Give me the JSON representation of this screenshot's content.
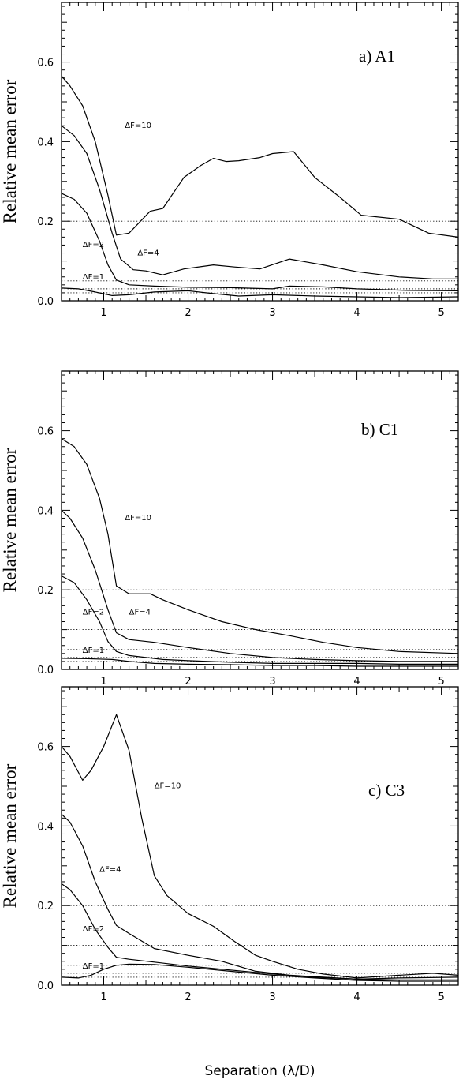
{
  "chart_data": [
    {
      "type": "line",
      "title": "a)  A1",
      "xlabel": "",
      "ylabel": "Relative mean error",
      "xlim": [
        0.5,
        5.2
      ],
      "ylim": [
        0,
        0.75
      ],
      "xticks": [
        "1",
        "2",
        "3",
        "4",
        "5"
      ],
      "yticks": [
        "0.0",
        "0.2",
        "0.4",
        "0.6"
      ],
      "reference_lines": [
        0.02,
        0.03,
        0.05,
        0.1,
        0.2
      ],
      "labels": [
        {
          "text": "ΔF=10",
          "x": 1.25,
          "y": 0.435
        },
        {
          "text": "ΔF=4",
          "x": 1.4,
          "y": 0.114
        },
        {
          "text": "ΔF=2",
          "x": 0.75,
          "y": 0.135
        },
        {
          "text": "ΔF=1",
          "x": 0.75,
          "y": 0.054
        }
      ],
      "series": [
        {
          "x": [
            0.5,
            0.6,
            0.75,
            0.9,
            1.05,
            1.15,
            1.3,
            1.55,
            1.7,
            1.95,
            2.15,
            2.3,
            2.45,
            2.6,
            2.85,
            3.0,
            3.25,
            3.5,
            3.8,
            4.05,
            4.5,
            4.85,
            5.2
          ],
          "values": [
            0.565,
            0.54,
            0.49,
            0.4,
            0.265,
            0.165,
            0.17,
            0.225,
            0.232,
            0.31,
            0.34,
            0.358,
            0.35,
            0.352,
            0.36,
            0.37,
            0.375,
            0.31,
            0.26,
            0.215,
            0.205,
            0.17,
            0.16
          ]
        },
        {
          "x": [
            0.5,
            0.65,
            0.8,
            0.95,
            1.1,
            1.2,
            1.35,
            1.5,
            1.7,
            1.95,
            2.3,
            2.55,
            2.85,
            3.2,
            3.6,
            4.0,
            4.5,
            4.9,
            5.2
          ],
          "values": [
            0.44,
            0.415,
            0.37,
            0.28,
            0.17,
            0.105,
            0.078,
            0.075,
            0.065,
            0.08,
            0.09,
            0.085,
            0.08,
            0.105,
            0.09,
            0.073,
            0.06,
            0.055,
            0.055
          ]
        },
        {
          "x": [
            0.5,
            0.65,
            0.8,
            0.95,
            1.05,
            1.15,
            1.3,
            1.6,
            2.0,
            2.5,
            3.0,
            3.2,
            3.6,
            4.0,
            4.6,
            5.2
          ],
          "values": [
            0.27,
            0.255,
            0.22,
            0.15,
            0.09,
            0.052,
            0.04,
            0.037,
            0.034,
            0.033,
            0.03,
            0.037,
            0.035,
            0.03,
            0.026,
            0.025
          ]
        },
        {
          "x": [
            0.5,
            0.7,
            0.9,
            1.1,
            1.3,
            1.6,
            2.0,
            2.3,
            2.6,
            3.0,
            3.5,
            4.0,
            4.5,
            5.2
          ],
          "values": [
            0.032,
            0.03,
            0.022,
            0.013,
            0.015,
            0.022,
            0.025,
            0.018,
            0.012,
            0.015,
            0.012,
            0.01,
            0.008,
            0.01
          ]
        }
      ]
    },
    {
      "type": "line",
      "title": "b)  C1",
      "xlabel": "",
      "ylabel": "Relative mean error",
      "xlim": [
        0.5,
        5.2
      ],
      "ylim": [
        0,
        0.75
      ],
      "xticks": [
        "1",
        "2",
        "3",
        "4",
        "5"
      ],
      "yticks": [
        "0.0",
        "0.2",
        "0.4",
        "0.6"
      ],
      "reference_lines": [
        0.02,
        0.03,
        0.05,
        0.1,
        0.2
      ],
      "labels": [
        {
          "text": "ΔF=10",
          "x": 1.25,
          "y": 0.375
        },
        {
          "text": "ΔF=4",
          "x": 1.3,
          "y": 0.138
        },
        {
          "text": "ΔF=2",
          "x": 0.75,
          "y": 0.138
        },
        {
          "text": "ΔF=1",
          "x": 0.75,
          "y": 0.042
        }
      ],
      "series": [
        {
          "x": [
            0.5,
            0.65,
            0.8,
            0.95,
            1.05,
            1.15,
            1.3,
            1.55,
            1.7,
            2.0,
            2.4,
            2.8,
            3.2,
            3.6,
            4.0,
            4.5,
            5.2
          ],
          "values": [
            0.58,
            0.56,
            0.515,
            0.43,
            0.34,
            0.21,
            0.19,
            0.19,
            0.175,
            0.15,
            0.12,
            0.1,
            0.085,
            0.068,
            0.055,
            0.045,
            0.04
          ]
        },
        {
          "x": [
            0.5,
            0.6,
            0.75,
            0.9,
            1.05,
            1.15,
            1.3,
            1.6,
            2.0,
            2.5,
            3.0,
            3.5,
            4.0,
            4.5,
            5.2
          ],
          "values": [
            0.4,
            0.38,
            0.33,
            0.25,
            0.15,
            0.092,
            0.075,
            0.068,
            0.055,
            0.04,
            0.03,
            0.025,
            0.022,
            0.02,
            0.02
          ]
        },
        {
          "x": [
            0.5,
            0.65,
            0.8,
            0.95,
            1.05,
            1.15,
            1.3,
            1.7,
            2.0,
            2.5,
            3.0,
            3.5,
            4.0,
            4.5,
            5.2
          ],
          "values": [
            0.235,
            0.218,
            0.175,
            0.12,
            0.07,
            0.045,
            0.035,
            0.025,
            0.022,
            0.018,
            0.015,
            0.015,
            0.015,
            0.013,
            0.013
          ]
        },
        {
          "x": [
            0.5,
            0.8,
            1.1,
            1.3,
            1.6,
            2.0,
            2.5,
            3.0,
            3.5,
            4.0,
            4.5,
            5.2
          ],
          "values": [
            0.028,
            0.027,
            0.025,
            0.02,
            0.015,
            0.013,
            0.012,
            0.01,
            0.01,
            0.008,
            0.008,
            0.008
          ]
        }
      ]
    },
    {
      "type": "line",
      "title": "c)  C3",
      "xlabel": "Separation (λ/D)",
      "ylabel": "Relative mean error",
      "xlim": [
        0.5,
        5.2
      ],
      "ylim": [
        0,
        0.75
      ],
      "xticks": [
        "1",
        "2",
        "3",
        "4",
        "5"
      ],
      "yticks": [
        "0.0",
        "0.2",
        "0.4",
        "0.6"
      ],
      "reference_lines": [
        0.02,
        0.03,
        0.05,
        0.1,
        0.2
      ],
      "labels": [
        {
          "text": "ΔF=10",
          "x": 1.6,
          "y": 0.495
        },
        {
          "text": "ΔF=4",
          "x": 0.95,
          "y": 0.285
        },
        {
          "text": "ΔF=2",
          "x": 0.75,
          "y": 0.135
        },
        {
          "text": "ΔF=1",
          "x": 0.75,
          "y": 0.042
        }
      ],
      "series": [
        {
          "x": [
            0.5,
            0.6,
            0.75,
            0.85,
            1.0,
            1.15,
            1.3,
            1.45,
            1.6,
            1.75,
            2.0,
            2.3,
            2.55,
            2.8,
            3.0,
            3.3,
            3.6,
            4.0,
            4.5,
            4.9,
            5.2
          ],
          "values": [
            0.6,
            0.575,
            0.515,
            0.54,
            0.6,
            0.68,
            0.59,
            0.42,
            0.275,
            0.225,
            0.18,
            0.148,
            0.11,
            0.075,
            0.06,
            0.04,
            0.028,
            0.018,
            0.025,
            0.03,
            0.025
          ]
        },
        {
          "x": [
            0.5,
            0.6,
            0.75,
            0.9,
            1.05,
            1.15,
            1.3,
            1.6,
            2.0,
            2.4,
            2.8,
            3.2,
            3.6,
            4.0,
            4.5,
            5.2
          ],
          "values": [
            0.43,
            0.41,
            0.35,
            0.26,
            0.19,
            0.15,
            0.13,
            0.092,
            0.075,
            0.06,
            0.035,
            0.025,
            0.02,
            0.015,
            0.018,
            0.02
          ]
        },
        {
          "x": [
            0.5,
            0.6,
            0.75,
            0.9,
            1.05,
            1.15,
            1.3,
            1.6,
            2.0,
            2.5,
            3.0,
            3.5,
            4.0,
            4.5,
            5.2
          ],
          "values": [
            0.255,
            0.24,
            0.2,
            0.14,
            0.095,
            0.07,
            0.065,
            0.058,
            0.048,
            0.038,
            0.028,
            0.02,
            0.015,
            0.013,
            0.013
          ]
        },
        {
          "x": [
            0.5,
            0.7,
            0.85,
            1.0,
            1.15,
            1.3,
            1.6,
            2.0,
            2.5,
            3.0,
            3.5,
            4.0,
            4.5,
            5.2
          ],
          "values": [
            0.02,
            0.018,
            0.025,
            0.04,
            0.05,
            0.053,
            0.052,
            0.045,
            0.035,
            0.025,
            0.018,
            0.012,
            0.01,
            0.01
          ]
        }
      ]
    }
  ]
}
